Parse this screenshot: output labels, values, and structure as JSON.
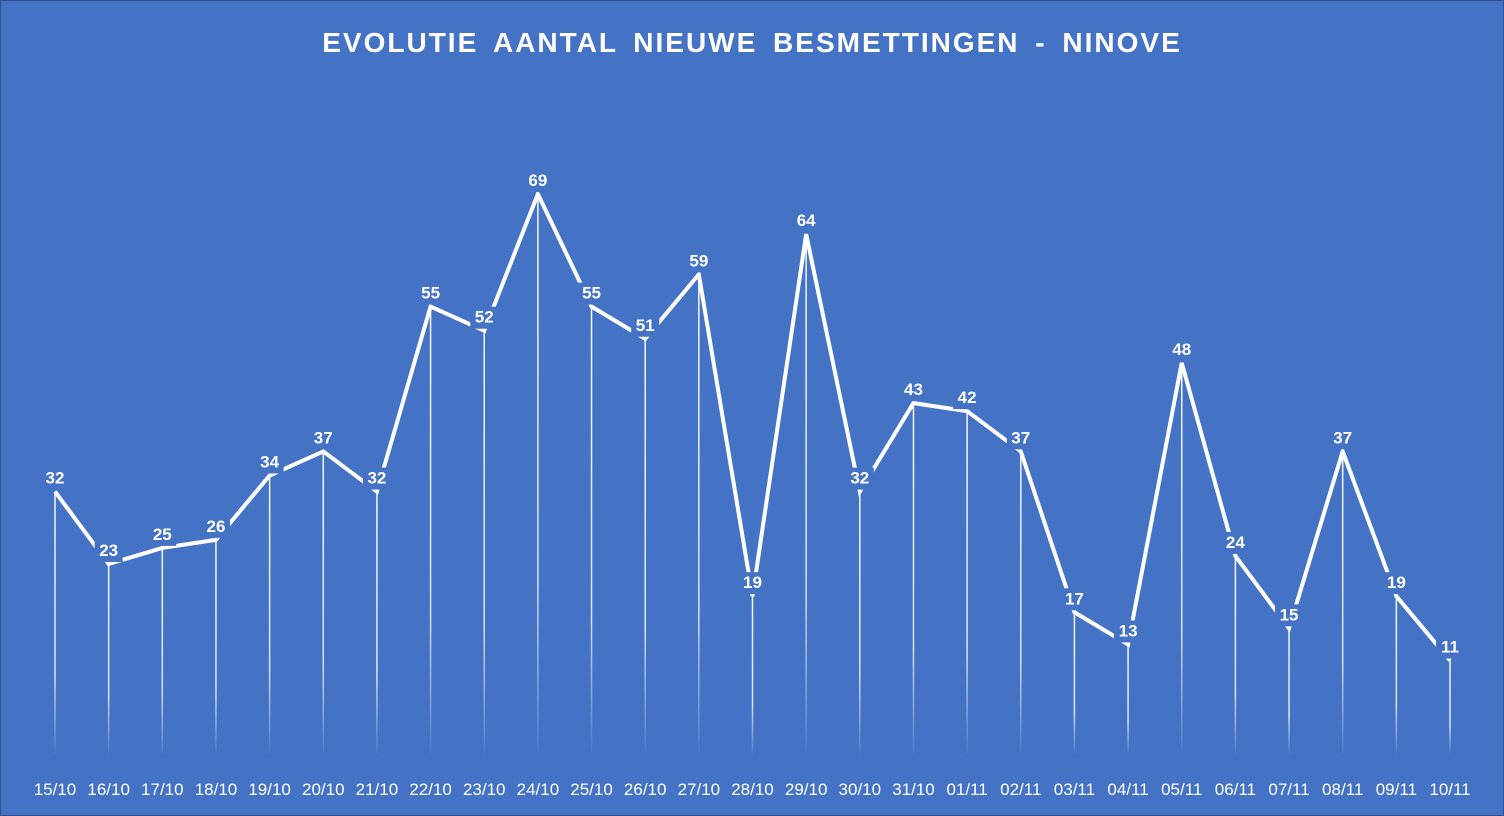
{
  "chart_data": {
    "type": "line",
    "title": "EVOLUTIE  AANTAL NIEUWE BESMETTINGEN  - NINOVE",
    "categories": [
      "15/10",
      "16/10",
      "17/10",
      "18/10",
      "19/10",
      "20/10",
      "21/10",
      "22/10",
      "23/10",
      "24/10",
      "25/10",
      "26/10",
      "27/10",
      "28/10",
      "29/10",
      "30/10",
      "31/10",
      "01/11",
      "02/11",
      "03/11",
      "04/11",
      "05/11",
      "06/11",
      "07/11",
      "08/11",
      "09/11",
      "10/11"
    ],
    "values": [
      32,
      23,
      25,
      26,
      34,
      37,
      32,
      55,
      52,
      69,
      55,
      51,
      59,
      19,
      64,
      32,
      43,
      42,
      37,
      17,
      13,
      48,
      24,
      15,
      37,
      19,
      11
    ],
    "data_labels": true,
    "grid": false,
    "drop_lines": true,
    "ylim": [
      0,
      80
    ],
    "colors": {
      "background": "#4472C4",
      "line": "#FFFFFF",
      "text": "#FFFFFF"
    }
  }
}
